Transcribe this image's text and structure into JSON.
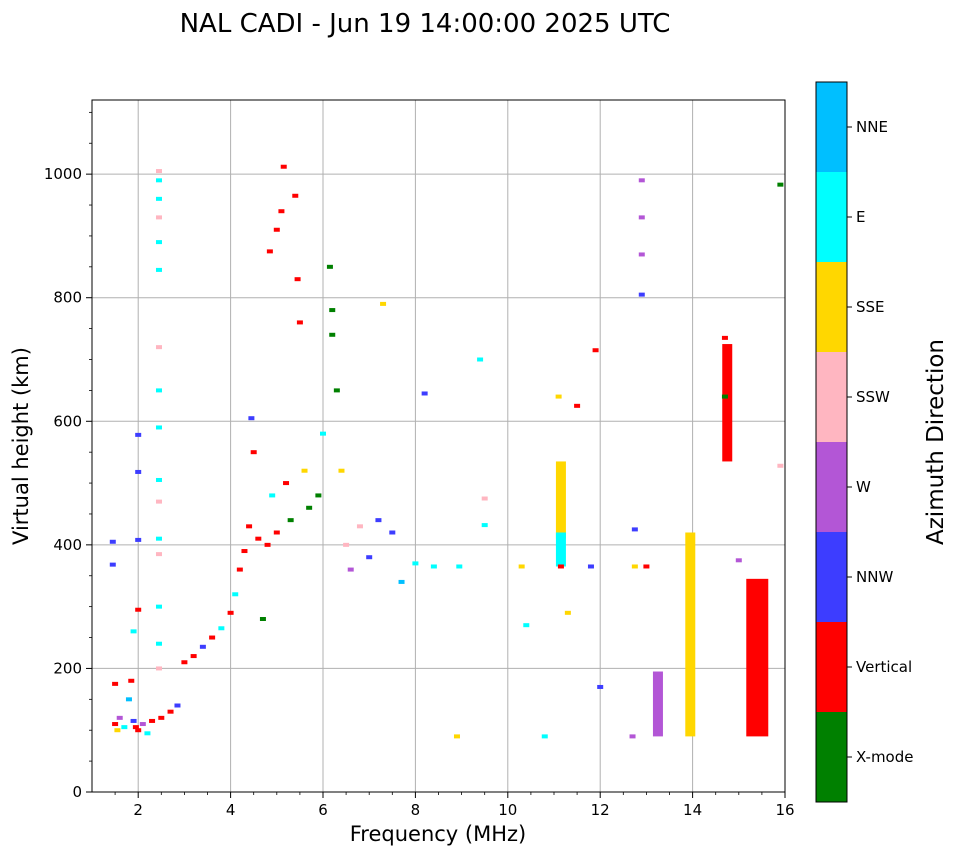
{
  "chart_data": {
    "type": "scatter",
    "title": "NAL CADI - Jun 19 14:00:00 2025 UTC",
    "xlabel": "Frequency (MHz)",
    "ylabel": "Virtual height (km)",
    "xlim": [
      1,
      16
    ],
    "ylim": [
      0,
      1120
    ],
    "xticks": [
      "2",
      "4",
      "6",
      "8",
      "10",
      "12",
      "14",
      "16"
    ],
    "yticks": [
      "0",
      "200",
      "400",
      "600",
      "800",
      "1000"
    ],
    "grid": true,
    "colorbar": {
      "title": "Azimuth Direction",
      "categories": [
        "X-mode",
        "Vertical",
        "NNW",
        "W",
        "SSW",
        "SSE",
        "E",
        "NNE"
      ],
      "colors": [
        "#008000",
        "#ff0000",
        "#3d3dff",
        "#b356d6",
        "#ffb6c1",
        "#ffd700",
        "#00ffff",
        "#00bfff"
      ]
    },
    "echoes": [
      {
        "f": 1.45,
        "h": 405,
        "c": "NNW"
      },
      {
        "f": 1.45,
        "h": 368,
        "c": "NNW"
      },
      {
        "f": 1.5,
        "h": 175,
        "c": "Vertical"
      },
      {
        "f": 1.5,
        "h": 110,
        "c": "Vertical"
      },
      {
        "f": 1.55,
        "h": 100,
        "c": "SSE"
      },
      {
        "f": 1.6,
        "h": 120,
        "c": "W"
      },
      {
        "f": 1.7,
        "h": 105,
        "c": "E"
      },
      {
        "f": 1.8,
        "h": 150,
        "c": "NNE"
      },
      {
        "f": 1.85,
        "h": 180,
        "c": "Vertical"
      },
      {
        "f": 1.9,
        "h": 260,
        "c": "E"
      },
      {
        "f": 1.9,
        "h": 115,
        "c": "NNW"
      },
      {
        "f": 1.95,
        "h": 105,
        "c": "Vertical"
      },
      {
        "f": 2.0,
        "h": 578,
        "c": "NNW"
      },
      {
        "f": 2.0,
        "h": 518,
        "c": "NNW"
      },
      {
        "f": 2.0,
        "h": 408,
        "c": "NNW"
      },
      {
        "f": 2.0,
        "h": 295,
        "c": "Vertical"
      },
      {
        "f": 2.0,
        "h": 100,
        "c": "Vertical"
      },
      {
        "f": 2.1,
        "h": 110,
        "c": "W"
      },
      {
        "f": 2.2,
        "h": 95,
        "c": "E"
      },
      {
        "f": 2.3,
        "h": 115,
        "c": "Vertical"
      },
      {
        "f": 2.45,
        "h": 1005,
        "c": "SSW"
      },
      {
        "f": 2.45,
        "h": 990,
        "c": "E"
      },
      {
        "f": 2.45,
        "h": 960,
        "c": "E"
      },
      {
        "f": 2.45,
        "h": 930,
        "c": "SSW"
      },
      {
        "f": 2.45,
        "h": 890,
        "c": "E"
      },
      {
        "f": 2.45,
        "h": 845,
        "c": "E"
      },
      {
        "f": 2.45,
        "h": 720,
        "c": "SSW"
      },
      {
        "f": 2.45,
        "h": 650,
        "c": "E"
      },
      {
        "f": 2.45,
        "h": 590,
        "c": "E"
      },
      {
        "f": 2.45,
        "h": 505,
        "c": "E"
      },
      {
        "f": 2.45,
        "h": 470,
        "c": "SSW"
      },
      {
        "f": 2.45,
        "h": 410,
        "c": "E"
      },
      {
        "f": 2.45,
        "h": 385,
        "c": "SSW"
      },
      {
        "f": 2.45,
        "h": 300,
        "c": "E"
      },
      {
        "f": 2.45,
        "h": 240,
        "c": "E"
      },
      {
        "f": 2.45,
        "h": 200,
        "c": "SSW"
      },
      {
        "f": 2.5,
        "h": 120,
        "c": "Vertical"
      },
      {
        "f": 2.7,
        "h": 130,
        "c": "Vertical"
      },
      {
        "f": 2.85,
        "h": 140,
        "c": "NNW"
      },
      {
        "f": 3.0,
        "h": 210,
        "c": "Vertical"
      },
      {
        "f": 3.2,
        "h": 220,
        "c": "Vertical"
      },
      {
        "f": 3.4,
        "h": 235,
        "c": "NNW"
      },
      {
        "f": 3.6,
        "h": 250,
        "c": "Vertical"
      },
      {
        "f": 3.8,
        "h": 265,
        "c": "E"
      },
      {
        "f": 4.0,
        "h": 290,
        "c": "Vertical"
      },
      {
        "f": 4.1,
        "h": 320,
        "c": "E"
      },
      {
        "f": 4.2,
        "h": 360,
        "c": "Vertical"
      },
      {
        "f": 4.3,
        "h": 390,
        "c": "Vertical"
      },
      {
        "f": 4.4,
        "h": 430,
        "c": "Vertical"
      },
      {
        "f": 4.45,
        "h": 605,
        "c": "NNW"
      },
      {
        "f": 4.5,
        "h": 550,
        "c": "Vertical"
      },
      {
        "f": 4.6,
        "h": 410,
        "c": "Vertical"
      },
      {
        "f": 4.7,
        "h": 280,
        "c": "X-mode"
      },
      {
        "f": 4.8,
        "h": 400,
        "c": "Vertical"
      },
      {
        "f": 4.85,
        "h": 875,
        "c": "Vertical"
      },
      {
        "f": 4.9,
        "h": 480,
        "c": "E"
      },
      {
        "f": 5.0,
        "h": 420,
        "c": "Vertical"
      },
      {
        "f": 5.0,
        "h": 910,
        "c": "Vertical"
      },
      {
        "f": 5.1,
        "h": 940,
        "c": "Vertical"
      },
      {
        "f": 5.15,
        "h": 1012,
        "c": "Vertical"
      },
      {
        "f": 5.2,
        "h": 500,
        "c": "Vertical"
      },
      {
        "f": 5.3,
        "h": 440,
        "c": "X-mode"
      },
      {
        "f": 5.4,
        "h": 965,
        "c": "Vertical"
      },
      {
        "f": 5.45,
        "h": 830,
        "c": "Vertical"
      },
      {
        "f": 5.5,
        "h": 760,
        "c": "Vertical"
      },
      {
        "f": 5.6,
        "h": 520,
        "c": "SSE"
      },
      {
        "f": 5.7,
        "h": 460,
        "c": "X-mode"
      },
      {
        "f": 5.9,
        "h": 480,
        "c": "X-mode"
      },
      {
        "f": 6.0,
        "h": 580,
        "c": "E"
      },
      {
        "f": 6.15,
        "h": 850,
        "c": "X-mode"
      },
      {
        "f": 6.2,
        "h": 780,
        "c": "X-mode"
      },
      {
        "f": 6.2,
        "h": 740,
        "c": "X-mode"
      },
      {
        "f": 6.3,
        "h": 650,
        "c": "X-mode"
      },
      {
        "f": 6.4,
        "h": 520,
        "c": "SSE"
      },
      {
        "f": 6.5,
        "h": 400,
        "c": "SSW"
      },
      {
        "f": 6.6,
        "h": 360,
        "c": "W"
      },
      {
        "f": 6.8,
        "h": 430,
        "c": "SSW"
      },
      {
        "f": 7.0,
        "h": 380,
        "c": "NNW"
      },
      {
        "f": 7.2,
        "h": 440,
        "c": "NNW"
      },
      {
        "f": 7.3,
        "h": 790,
        "c": "SSE"
      },
      {
        "f": 7.5,
        "h": 420,
        "c": "NNW"
      },
      {
        "f": 7.7,
        "h": 340,
        "c": "NNE"
      },
      {
        "f": 8.0,
        "h": 370,
        "c": "E"
      },
      {
        "f": 8.2,
        "h": 645,
        "c": "NNW"
      },
      {
        "f": 8.4,
        "h": 365,
        "c": "E"
      },
      {
        "f": 8.9,
        "h": 90,
        "c": "SSE"
      },
      {
        "f": 8.95,
        "h": 365,
        "c": "E"
      },
      {
        "f": 9.4,
        "h": 700,
        "c": "E"
      },
      {
        "f": 9.5,
        "h": 475,
        "c": "SSW"
      },
      {
        "f": 9.5,
        "h": 432,
        "c": "E"
      },
      {
        "f": 10.3,
        "h": 365,
        "c": "SSE"
      },
      {
        "f": 10.4,
        "h": 270,
        "c": "E"
      },
      {
        "f": 10.8,
        "h": 90,
        "c": "E"
      },
      {
        "f": 11.1,
        "h": 640,
        "c": "SSE"
      },
      {
        "f": 11.15,
        "h": 365,
        "c": "Vertical"
      },
      {
        "f": 11.3,
        "h": 290,
        "c": "SSE"
      },
      {
        "f": 11.5,
        "h": 625,
        "c": "Vertical"
      },
      {
        "f": 11.8,
        "h": 365,
        "c": "NNW"
      },
      {
        "f": 11.9,
        "h": 715,
        "c": "Vertical"
      },
      {
        "f": 12.0,
        "h": 170,
        "c": "NNW"
      },
      {
        "f": 12.7,
        "h": 90,
        "c": "W"
      },
      {
        "f": 12.75,
        "h": 425,
        "c": "NNW"
      },
      {
        "f": 12.75,
        "h": 365,
        "c": "SSE"
      },
      {
        "f": 12.9,
        "h": 990,
        "c": "W"
      },
      {
        "f": 12.9,
        "h": 930,
        "c": "W"
      },
      {
        "f": 12.9,
        "h": 870,
        "c": "W"
      },
      {
        "f": 12.9,
        "h": 805,
        "c": "NNW"
      },
      {
        "f": 13.0,
        "h": 365,
        "c": "Vertical"
      },
      {
        "f": 14.7,
        "h": 735,
        "c": "Vertical"
      },
      {
        "f": 14.7,
        "h": 640,
        "c": "X-mode"
      },
      {
        "f": 15.0,
        "h": 375,
        "c": "W"
      },
      {
        "f": 15.9,
        "h": 983,
        "c": "X-mode"
      },
      {
        "f": 15.9,
        "h": 528,
        "c": "SSW"
      }
    ],
    "columns": [
      {
        "f": 11.15,
        "h0": 410,
        "h1": 535,
        "c": "SSE"
      },
      {
        "f": 11.15,
        "h0": 365,
        "h1": 420,
        "c": "E"
      },
      {
        "f": 13.25,
        "h0": 90,
        "h1": 195,
        "c": "W"
      },
      {
        "f": 13.95,
        "h0": 90,
        "h1": 420,
        "c": "SSE"
      },
      {
        "f": 14.75,
        "h0": 535,
        "h1": 725,
        "c": "Vertical"
      },
      {
        "f": 15.4,
        "h0": 90,
        "h1": 345,
        "c": "Vertical"
      }
    ]
  }
}
